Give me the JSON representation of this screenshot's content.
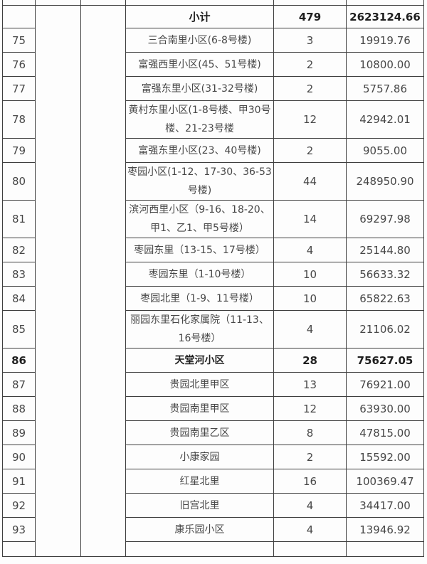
{
  "page": {
    "background": "#fdfdfd"
  },
  "table": {
    "border_color": "#3e3e3e",
    "text_color": "#474747",
    "bold_text_color": "#1f1f1f",
    "subtotal": {
      "name": "小计",
      "count": "479",
      "amount": "2623124.66"
    },
    "rows": [
      {
        "no": "75",
        "name": "三合南里小区(6-8号楼)",
        "count": "3",
        "amount": "19919.76"
      },
      {
        "no": "76",
        "name": "富强西里小区(45、51号楼)",
        "count": "2",
        "amount": "10800.00"
      },
      {
        "no": "77",
        "name": "富强东里小区(31-32号楼)",
        "count": "2",
        "amount": "5757.86"
      },
      {
        "no": "78",
        "name": "黄村东里小区(1-8号楼、甲30号楼、21-23号楼",
        "count": "12",
        "amount": "42942.01"
      },
      {
        "no": "79",
        "name": "富强东里小区(23、40号楼)",
        "count": "2",
        "amount": "9055.00"
      },
      {
        "no": "80",
        "name": "枣园小区(1-12、17-30、36-53号楼)",
        "count": "44",
        "amount": "248950.90"
      },
      {
        "no": "81",
        "name": "滨河西里小区（9-16、18-20、甲1、乙1、甲5号楼）",
        "count": "14",
        "amount": "69297.98"
      },
      {
        "no": "82",
        "name": "枣园东里（13-15、17号楼）",
        "count": "4",
        "amount": "25144.80"
      },
      {
        "no": "83",
        "name": "枣园东里（1-10号楼）",
        "count": "10",
        "amount": "56633.32"
      },
      {
        "no": "84",
        "name": "枣园北里（1-9、11号楼）",
        "count": "10",
        "amount": "65822.63"
      },
      {
        "no": "85",
        "name": "丽园东里石化家属院（11-13、16号楼）",
        "count": "4",
        "amount": "21106.02"
      },
      {
        "no": "86",
        "name": "天堂河小区",
        "count": "28",
        "amount": "75627.05",
        "bold": true
      },
      {
        "no": "87",
        "name": "贵园北里甲区",
        "count": "13",
        "amount": "76921.00"
      },
      {
        "no": "88",
        "name": "贵园南里甲区",
        "count": "12",
        "amount": "63930.00"
      },
      {
        "no": "89",
        "name": "贵园南里乙区",
        "count": "8",
        "amount": "47815.00"
      },
      {
        "no": "90",
        "name": "小康家园",
        "count": "2",
        "amount": "15592.00"
      },
      {
        "no": "91",
        "name": "红星北里",
        "count": "16",
        "amount": "100369.47"
      },
      {
        "no": "92",
        "name": "旧宫北里",
        "count": "4",
        "amount": "34417.00"
      },
      {
        "no": "93",
        "name": "康乐园小区",
        "count": "4",
        "amount": "13946.92"
      }
    ]
  }
}
